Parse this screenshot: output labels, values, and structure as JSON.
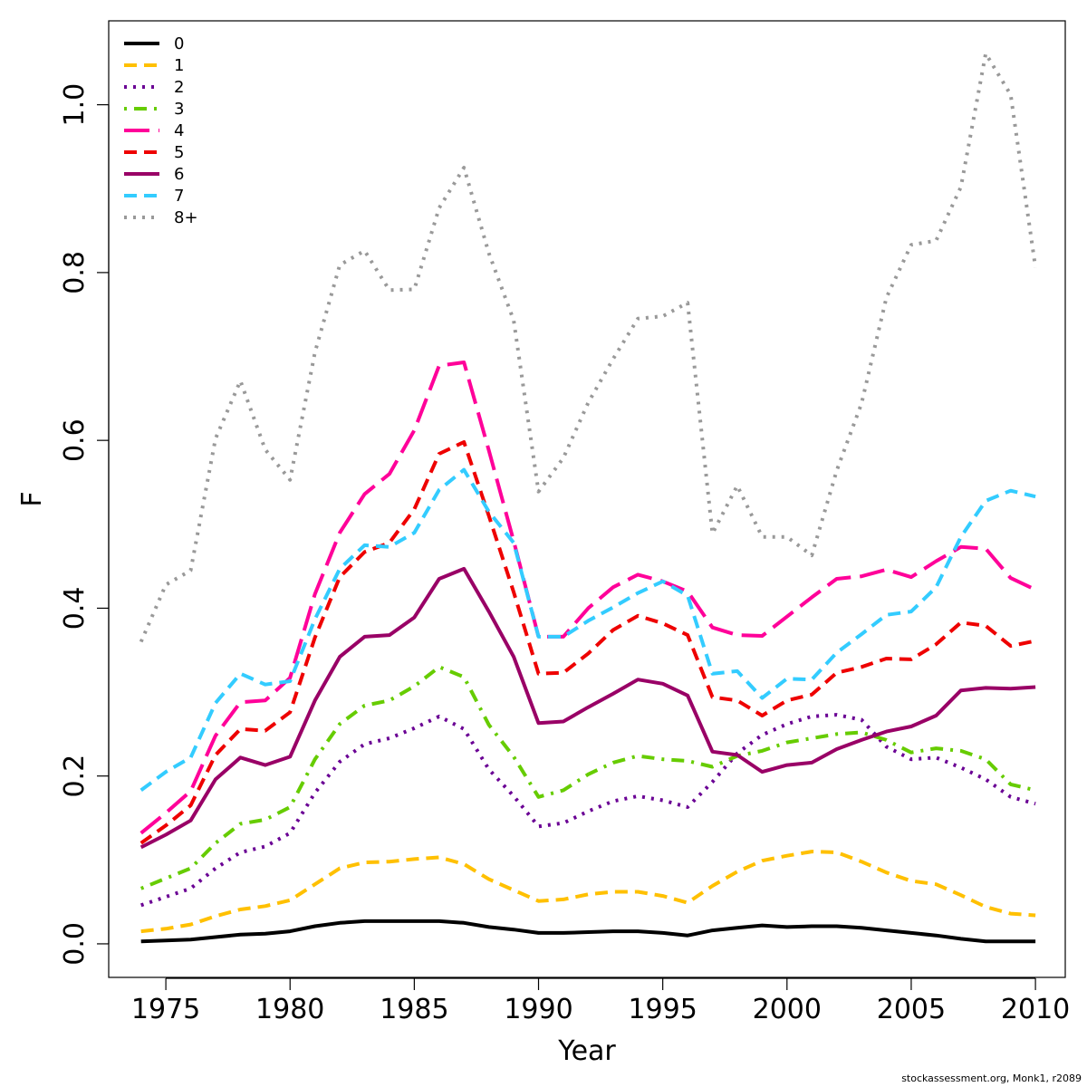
{
  "chart_data": {
    "type": "line",
    "xlabel": "Year",
    "ylabel": "F",
    "xlim": [
      1972.7,
      2011.2
    ],
    "ylim": [
      -0.04,
      1.1
    ],
    "x_ticks": [
      1975,
      1980,
      1985,
      1990,
      1995,
      2000,
      2005,
      2010
    ],
    "y_ticks": [
      0.0,
      0.2,
      0.4,
      0.6,
      0.8,
      1.0
    ],
    "y_tick_labels": [
      "0.0",
      "0.2",
      "0.4",
      "0.6",
      "0.8",
      "1.0"
    ],
    "legend_position": "top-left",
    "grid": false,
    "x": [
      1974,
      1975,
      1976,
      1977,
      1978,
      1979,
      1980,
      1981,
      1982,
      1983,
      1984,
      1985,
      1986,
      1987,
      1988,
      1989,
      1990,
      1991,
      1992,
      1993,
      1994,
      1995,
      1996,
      1997,
      1998,
      1999,
      2000,
      2001,
      2002,
      2003,
      2004,
      2005,
      2006,
      2007,
      2008,
      2009,
      2010
    ],
    "series": [
      {
        "name": "0",
        "color": "#000000",
        "dash": "solid",
        "values": [
          0.003,
          0.004,
          0.005,
          0.008,
          0.011,
          0.012,
          0.015,
          0.021,
          0.025,
          0.027,
          0.027,
          0.027,
          0.027,
          0.025,
          0.02,
          0.017,
          0.013,
          0.013,
          0.014,
          0.015,
          0.015,
          0.013,
          0.01,
          0.016,
          0.019,
          0.022,
          0.02,
          0.021,
          0.021,
          0.019,
          0.016,
          0.013,
          0.01,
          0.006,
          0.003,
          0.003,
          0.003
        ]
      },
      {
        "name": "1",
        "color": "#FFC000",
        "dash": "dashed",
        "values": [
          0.015,
          0.018,
          0.023,
          0.033,
          0.041,
          0.045,
          0.052,
          0.071,
          0.09,
          0.097,
          0.098,
          0.101,
          0.103,
          0.095,
          0.077,
          0.064,
          0.051,
          0.053,
          0.059,
          0.062,
          0.062,
          0.057,
          0.049,
          0.069,
          0.086,
          0.099,
          0.105,
          0.11,
          0.109,
          0.098,
          0.085,
          0.075,
          0.071,
          0.058,
          0.044,
          0.036,
          0.034
        ]
      },
      {
        "name": "2",
        "color": "#6A0094",
        "dash": "dotted",
        "values": [
          0.046,
          0.056,
          0.066,
          0.09,
          0.109,
          0.116,
          0.132,
          0.18,
          0.217,
          0.238,
          0.245,
          0.257,
          0.271,
          0.256,
          0.208,
          0.176,
          0.14,
          0.144,
          0.158,
          0.17,
          0.176,
          0.171,
          0.163,
          0.193,
          0.227,
          0.249,
          0.262,
          0.271,
          0.273,
          0.267,
          0.235,
          0.22,
          0.222,
          0.21,
          0.196,
          0.175,
          0.167
        ]
      },
      {
        "name": "3",
        "color": "#66CC00",
        "dash": "dotdash",
        "values": [
          0.066,
          0.078,
          0.09,
          0.12,
          0.143,
          0.148,
          0.163,
          0.22,
          0.262,
          0.284,
          0.29,
          0.307,
          0.33,
          0.318,
          0.261,
          0.223,
          0.175,
          0.183,
          0.202,
          0.216,
          0.224,
          0.22,
          0.218,
          0.211,
          0.224,
          0.23,
          0.24,
          0.245,
          0.25,
          0.252,
          0.243,
          0.228,
          0.233,
          0.23,
          0.22,
          0.19,
          0.183
        ]
      },
      {
        "name": "4",
        "color": "#FF0099",
        "dash": "longdash",
        "values": [
          0.132,
          0.156,
          0.182,
          0.248,
          0.288,
          0.29,
          0.317,
          0.417,
          0.49,
          0.536,
          0.56,
          0.612,
          0.689,
          0.693,
          0.588,
          0.48,
          0.366,
          0.366,
          0.4,
          0.425,
          0.44,
          0.432,
          0.42,
          0.377,
          0.368,
          0.367,
          0.39,
          0.413,
          0.435,
          0.438,
          0.446,
          0.437,
          0.456,
          0.473,
          0.471,
          0.436,
          0.422
        ]
      },
      {
        "name": "5",
        "color": "#EE0000",
        "dash": "dashed",
        "values": [
          0.12,
          0.141,
          0.165,
          0.225,
          0.256,
          0.254,
          0.276,
          0.365,
          0.437,
          0.467,
          0.478,
          0.518,
          0.584,
          0.598,
          0.51,
          0.419,
          0.322,
          0.323,
          0.346,
          0.374,
          0.391,
          0.382,
          0.368,
          0.294,
          0.29,
          0.272,
          0.29,
          0.297,
          0.323,
          0.33,
          0.34,
          0.339,
          0.357,
          0.383,
          0.379,
          0.355,
          0.361
        ]
      },
      {
        "name": "6",
        "color": "#990066",
        "dash": "solid",
        "values": [
          0.115,
          0.13,
          0.147,
          0.196,
          0.222,
          0.213,
          0.223,
          0.29,
          0.342,
          0.366,
          0.368,
          0.389,
          0.435,
          0.447,
          0.396,
          0.342,
          0.263,
          0.265,
          0.282,
          0.298,
          0.315,
          0.31,
          0.296,
          0.229,
          0.225,
          0.205,
          0.213,
          0.216,
          0.232,
          0.243,
          0.253,
          0.259,
          0.272,
          0.302,
          0.305,
          0.304,
          0.306
        ]
      },
      {
        "name": "7",
        "color": "#33CCFF",
        "dash": "dashed",
        "values": [
          0.183,
          0.205,
          0.222,
          0.287,
          0.322,
          0.309,
          0.313,
          0.387,
          0.447,
          0.475,
          0.473,
          0.49,
          0.541,
          0.565,
          0.515,
          0.478,
          0.366,
          0.366,
          0.385,
          0.401,
          0.418,
          0.432,
          0.415,
          0.322,
          0.325,
          0.293,
          0.316,
          0.315,
          0.347,
          0.369,
          0.392,
          0.396,
          0.425,
          0.485,
          0.528,
          0.54,
          0.533
        ]
      },
      {
        "name": "8+",
        "color": "#999999",
        "dash": "dotted",
        "values": [
          0.36,
          0.428,
          0.445,
          0.602,
          0.671,
          0.589,
          0.553,
          0.705,
          0.809,
          0.826,
          0.779,
          0.78,
          0.877,
          0.925,
          0.823,
          0.743,
          0.539,
          0.579,
          0.645,
          0.697,
          0.745,
          0.748,
          0.764,
          0.489,
          0.546,
          0.485,
          0.485,
          0.463,
          0.564,
          0.644,
          0.77,
          0.833,
          0.838,
          0.902,
          1.061,
          1.012,
          0.806
        ]
      }
    ]
  },
  "footer": "stockassessment.org, Monk1, r2089"
}
